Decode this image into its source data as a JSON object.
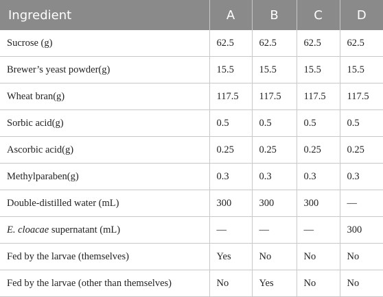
{
  "table": {
    "header": [
      "Ingredient",
      "A",
      "B",
      "C",
      "D"
    ],
    "rows": [
      [
        "Sucrose (g)",
        "62.5",
        "62.5",
        "62.5",
        "62.5"
      ],
      [
        "Brewer’s yeast powder(g)",
        "15.5",
        "15.5",
        "15.5",
        "15.5"
      ],
      [
        "Wheat bran(g)",
        "117.5",
        "117.5",
        "117.5",
        "117.5"
      ],
      [
        "Sorbic acid(g)",
        "0.5",
        "0.5",
        "0.5",
        "0.5"
      ],
      [
        "Ascorbic acid(g)",
        "0.25",
        "0.25",
        "0.25",
        "0.25"
      ],
      [
        "Methylparaben(g)",
        "0.3",
        "0.3",
        "0.3",
        "0.3"
      ],
      [
        "Double-distilled water (mL)",
        "300",
        "300",
        "300",
        "—"
      ],
      [
        {
          "italic": "E. cloacae",
          "text": " supernatant (mL)"
        },
        "—",
        "—",
        "—",
        "300"
      ],
      [
        "Fed by the larvae (themselves)",
        "Yes",
        "No",
        "No",
        "No"
      ],
      [
        "Fed by the larvae (other than themselves)",
        "No",
        "Yes",
        "No",
        "No"
      ]
    ]
  }
}
